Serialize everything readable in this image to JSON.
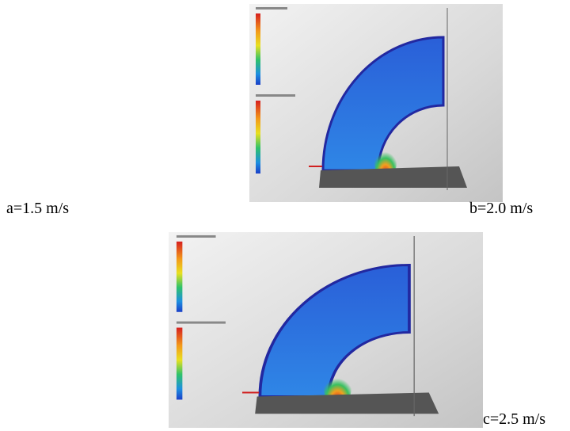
{
  "labels": {
    "a": "a=1.5 m/s",
    "b": "b=2.0 m/s",
    "c": "c=2.5 m/s"
  }
}
